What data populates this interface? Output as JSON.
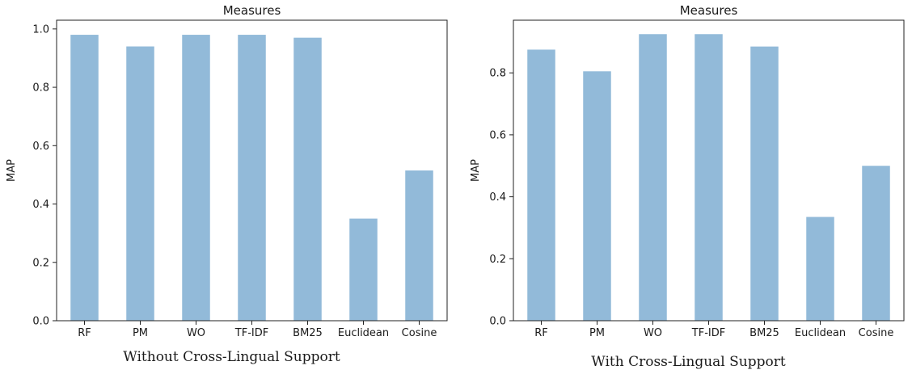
{
  "chart_data": [
    {
      "type": "bar",
      "title": "Measures",
      "caption": "Without Cross-Lingual Support",
      "ylabel": "MAP",
      "xlabel": "",
      "categories": [
        "RF",
        "PM",
        "WO",
        "TF-IDF",
        "BM25",
        "Euclidean",
        "Cosine"
      ],
      "values": [
        0.98,
        0.94,
        0.98,
        0.98,
        0.97,
        0.35,
        0.515
      ],
      "ylim": [
        0,
        1.03
      ],
      "yticks": [
        0.0,
        0.2,
        0.4,
        0.6,
        0.8,
        1.0
      ],
      "ytick_labels": [
        "0.0",
        "0.2",
        "0.4",
        "0.6",
        "0.8",
        "1.0"
      ],
      "grid": false,
      "color": "#92bad9"
    },
    {
      "type": "bar",
      "title": "Measures",
      "caption": "With Cross-Lingual Support",
      "ylabel": "MAP",
      "xlabel": "",
      "categories": [
        "RF",
        "PM",
        "WO",
        "TF-IDF",
        "BM25",
        "Euclidean",
        "Cosine"
      ],
      "values": [
        0.875,
        0.805,
        0.925,
        0.925,
        0.885,
        0.335,
        0.5
      ],
      "ylim": [
        0,
        0.97
      ],
      "yticks": [
        0.0,
        0.2,
        0.4,
        0.6,
        0.8
      ],
      "ytick_labels": [
        "0.0",
        "0.2",
        "0.4",
        "0.6",
        "0.8"
      ],
      "grid": false,
      "color": "#92bad9"
    }
  ]
}
